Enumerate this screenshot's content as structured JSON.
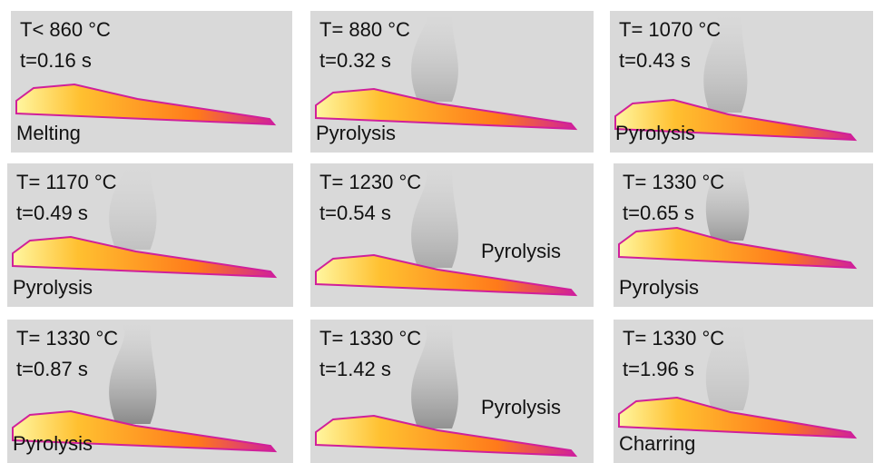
{
  "panels": [
    {
      "temperature": "T< 860 °C",
      "time": "t=0.16 s",
      "stage": "Melting"
    },
    {
      "temperature": "T= 880 °C",
      "time": "t=0.32 s",
      "stage": "Pyrolysis"
    },
    {
      "temperature": "T= 1070 °C",
      "time": "t=0.43 s",
      "stage": "Pyrolysis"
    },
    {
      "temperature": "T= 1170 °C",
      "time": "t=0.49 s",
      "stage": "Pyrolysis"
    },
    {
      "temperature": "T= 1230 °C",
      "time": "t=0.54 s",
      "stage": "Pyrolysis"
    },
    {
      "temperature": "T= 1330 °C",
      "time": "t=0.65 s",
      "stage": "Pyrolysis"
    },
    {
      "temperature": "T= 1330 °C",
      "time": "t=0.87 s",
      "stage": "Pyrolysis"
    },
    {
      "temperature": "T= 1330 °C",
      "time": "t=1.42 s",
      "stage": "Pyrolysis"
    },
    {
      "temperature": "T= 1330 °C",
      "time": "t=1.96 s",
      "stage": "Charring"
    }
  ]
}
